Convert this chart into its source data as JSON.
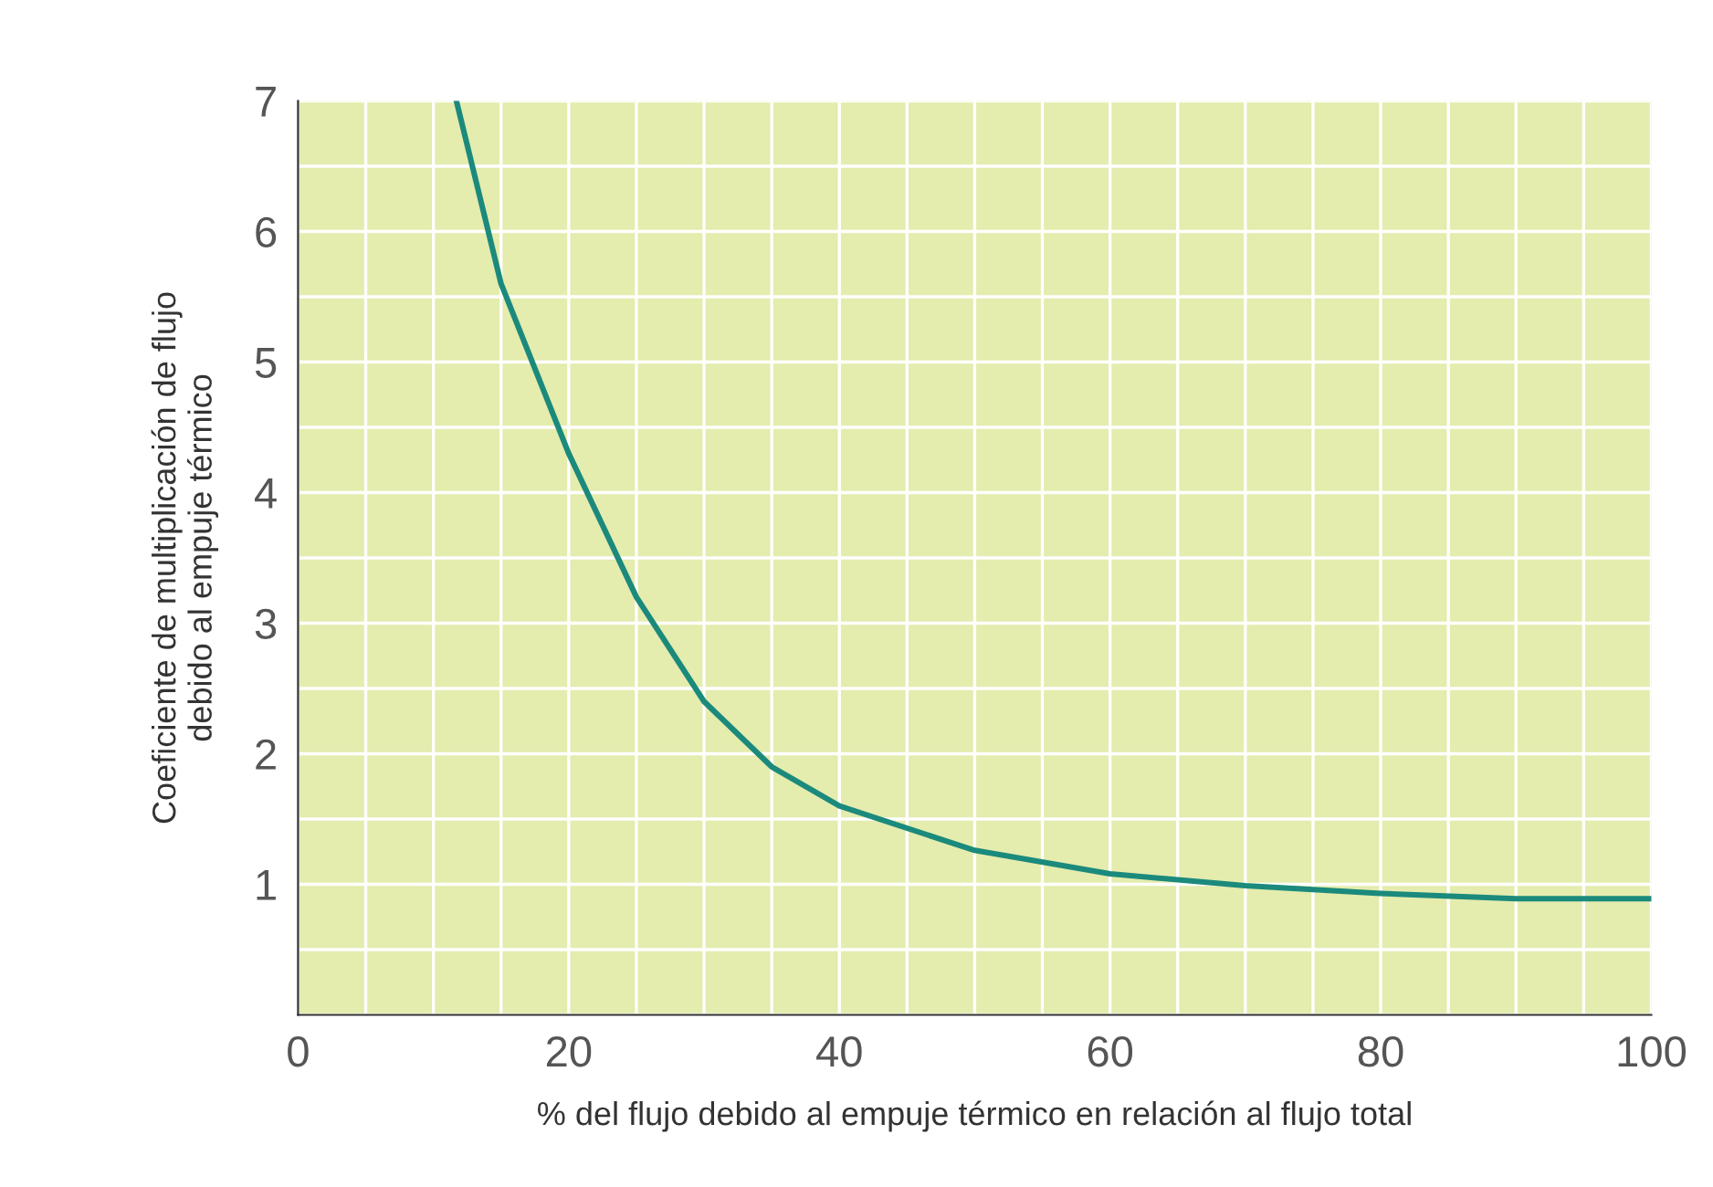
{
  "chart_data": {
    "type": "line",
    "xlabel": "% del flujo debido al empuje térmico en relación al flujo total",
    "ylabel": "Coeficiente de multiplicación de flujo\ndebido al empuje térmico",
    "series": [
      {
        "color": "#1b8a7c",
        "x": [
          11.7,
          15,
          20,
          25,
          30,
          35,
          40,
          50,
          60,
          70,
          80,
          90,
          100
        ],
        "values": [
          7,
          5.6,
          4.3,
          3.2,
          2.4,
          1.9,
          1.6,
          1.26,
          1.08,
          0.99,
          0.93,
          0.89,
          0.89
        ]
      }
    ],
    "xlim": [
      0,
      100
    ],
    "ylim": [
      0,
      7
    ],
    "xticks": [
      0,
      20,
      40,
      60,
      80,
      100
    ],
    "yticks": [
      1,
      2,
      3,
      4,
      5,
      6,
      7
    ],
    "grid": true,
    "marker": "none",
    "line_style": "solid"
  }
}
